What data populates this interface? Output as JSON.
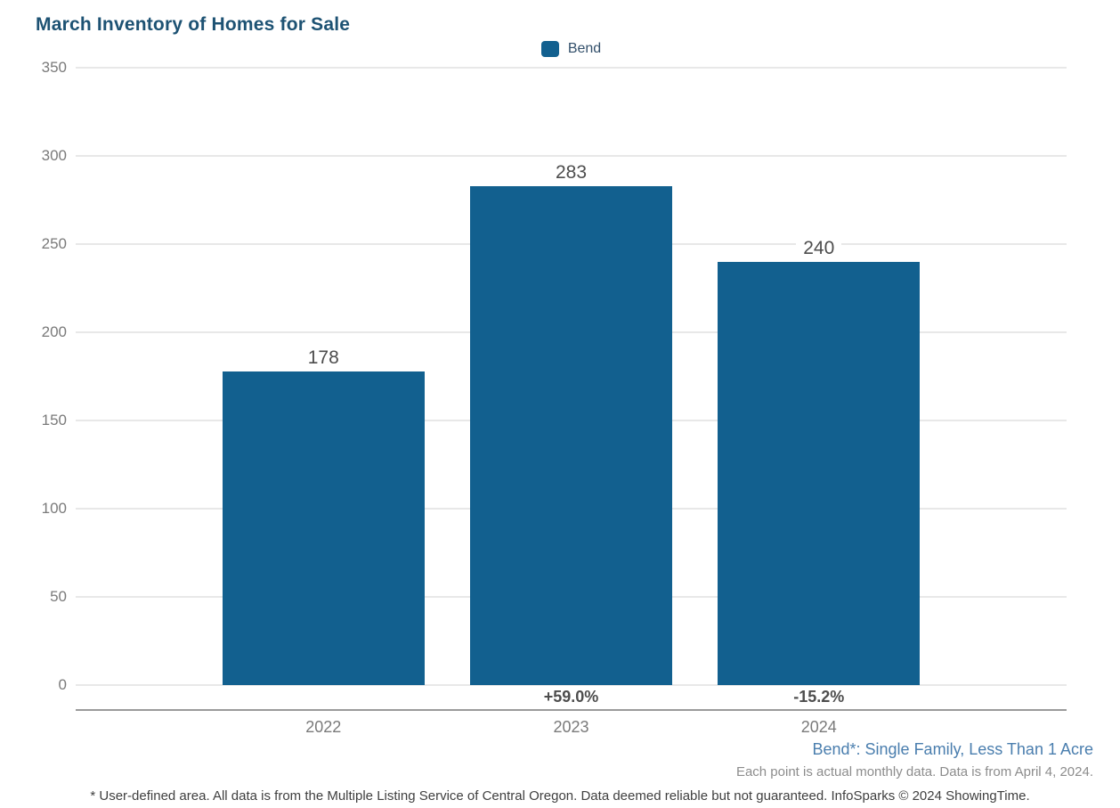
{
  "title": "March Inventory of Homes for Sale",
  "legend": {
    "label": "Bend",
    "swatch_color": "#12608f"
  },
  "chart_data": {
    "type": "bar",
    "title": "March Inventory of Homes for Sale",
    "categories": [
      "2022",
      "2023",
      "2024"
    ],
    "series": [
      {
        "name": "Bend",
        "color": "#12608f",
        "values": [
          178,
          283,
          240
        ]
      }
    ],
    "data_labels": [
      "178",
      "283",
      "240"
    ],
    "pct_change_labels": [
      "",
      "+59.0%",
      "-15.2%"
    ],
    "ylim": [
      0,
      350
    ],
    "yticks": [
      350,
      300,
      250,
      200,
      150,
      100,
      50,
      0
    ],
    "xlabel": "",
    "ylabel": "",
    "grid": "horizontal",
    "legend_position": "top-center"
  },
  "footnotes": {
    "series_definition": "Bend*: Single Family, Less Than 1 Acre",
    "data_note": "Each point is actual monthly data. Data is from April 4, 2024.",
    "disclaimer": "* User-defined area. All data is from the Multiple Listing Service of Central Oregon. Data deemed reliable but not guaranteed. InfoSparks © 2024 ShowingTime."
  },
  "colors": {
    "title_text": "#1d5273",
    "bar_fill": "#12608f",
    "legend_text": "#33506b",
    "axis_tick_text": "#7a7a7a",
    "value_label_text": "#4d4d4d",
    "pct_label_text": "#4d4d4d",
    "series_definition_text": "#4a7eae",
    "data_note_text": "#8c8c8c",
    "disclaimer_text": "#3f3f3f",
    "gridline": "#e8e8e8",
    "axis_line": "#9a9a9a"
  }
}
